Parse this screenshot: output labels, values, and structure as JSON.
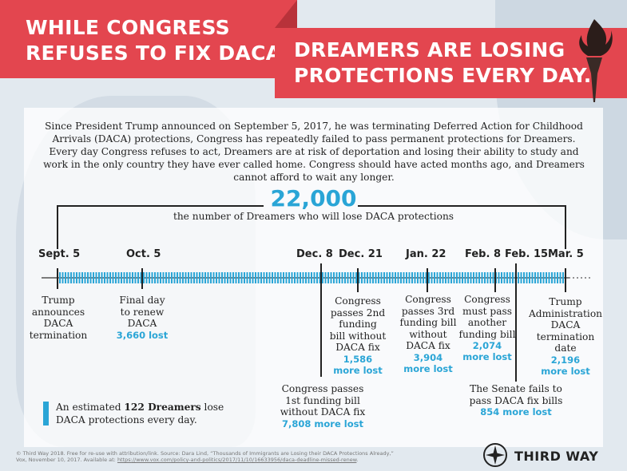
{
  "header": {
    "left_line1": "WHILE CONGRESS",
    "left_line2": "REFUSES TO FIX DACA,",
    "right_line1": "DREAMERS ARE LOSING",
    "right_line2": "PROTECTIONS EVERY DAY."
  },
  "intro": "Since President Trump announced on September 5, 2017, he was terminating Deferred Action for Childhood Arrivals (DACA) protections, Congress has repeatedly failed to pass permanent protections for Dreamers. Every day Congress refuses to act, Dreamers are at risk of deportation and losing their ability to study and work in the only country they have ever called home. Congress should have acted months ago, and Dreamers cannot afford to wait any longer.",
  "total": {
    "number": "22,000",
    "caption": "the number of Dreamers who will lose DACA protections"
  },
  "dates": {
    "sept5": "Sept. 5",
    "oct5": "Oct. 5",
    "dec8": "Dec. 8",
    "dec21": "Dec. 21",
    "jan22": "Jan. 22",
    "feb8": "Feb. 8",
    "feb15": "Feb. 15",
    "mar5": "Mar. 5"
  },
  "events": {
    "sept5": {
      "l1": "Trump",
      "l2": "announces",
      "l3": "DACA",
      "l4": "termination"
    },
    "oct5": {
      "l1": "Final day",
      "l2": "to renew",
      "l3": "DACA",
      "lost": "3,660 lost"
    },
    "dec8": {
      "l1": "Congress passes",
      "l2": "1st funding bill",
      "l3": "without DACA fix",
      "lost": "7,808 more lost"
    },
    "dec21": {
      "l1": "Congress",
      "l2": "passes 2nd",
      "l3": "funding",
      "l4": "bill without",
      "l5": "DACA fix",
      "lost1": "1,586",
      "lost2": "more lost"
    },
    "jan22": {
      "l1": "Congress",
      "l2": "passes 3rd",
      "l3": "funding bill",
      "l4": "without",
      "l5": "DACA fix",
      "lost1": "3,904",
      "lost2": "more lost"
    },
    "feb8": {
      "l1": "Congress",
      "l2": "must pass",
      "l3": "another",
      "l4": "funding bill",
      "lost1": "2,074",
      "lost2": "more lost"
    },
    "feb15": {
      "l1": "The Senate fails to",
      "l2": "pass DACA fix bills",
      "lost": "854 more lost"
    },
    "mar5": {
      "l1": "Trump",
      "l2": "Administration",
      "l3": "DACA",
      "l4": "termination",
      "l5": "date",
      "lost1": "2,196",
      "lost2": "more lost"
    }
  },
  "legend": {
    "pre": "An estimated ",
    "bold": "122 Dreamers",
    "post": " lose",
    "line2": "DACA protections every day."
  },
  "footer": {
    "line1": "© Third Way 2018. Free for re-use with attribution/link. Source: Dara Lind, “Thousands of Immigrants are Losing their DACA Protections Already,”",
    "line2_pre": "Vox, November 10, 2017. Available at: ",
    "url": "https://www.vox.com/policy-and-politics/2017/11/10/16633956/daca-deadline-missed-renew",
    "line2_post": "."
  },
  "brand": "THIRD WAY",
  "colors": {
    "red": "#e3464f",
    "blue": "#2aa5d6",
    "dark": "#222222"
  }
}
